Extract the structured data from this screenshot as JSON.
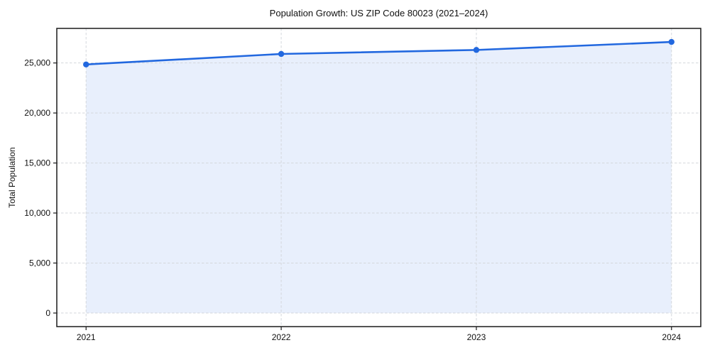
{
  "chart_data": {
    "type": "area",
    "title": "Population Growth: US ZIP Code 80023 (2021–2024)",
    "xlabel": "",
    "ylabel": "Total Population",
    "categories": [
      "2021",
      "2022",
      "2023",
      "2024"
    ],
    "x": [
      2021,
      2022,
      2023,
      2024
    ],
    "series": [
      {
        "name": "Total Population",
        "values": [
          24850,
          25900,
          26300,
          27100
        ]
      }
    ],
    "xlim": [
      2020.85,
      2024.15
    ],
    "ylim": [
      -1355,
      28455
    ],
    "yticks": [
      0,
      5000,
      10000,
      15000,
      20000,
      25000
    ],
    "ytick_labels": [
      "0",
      "5,000",
      "10,000",
      "15,000",
      "20,000",
      "25,000"
    ],
    "grid": true,
    "grid_style": "dashed",
    "legend": "none",
    "fill_baseline": 0,
    "line_color": "#2268df",
    "marker_color": "#2268df",
    "fill_color": "#e8effc",
    "grid_color": "#d4d7dc",
    "spine_color": "#1a1a1a",
    "tick_color": "#1a1a1a",
    "text_color": "#111111"
  }
}
